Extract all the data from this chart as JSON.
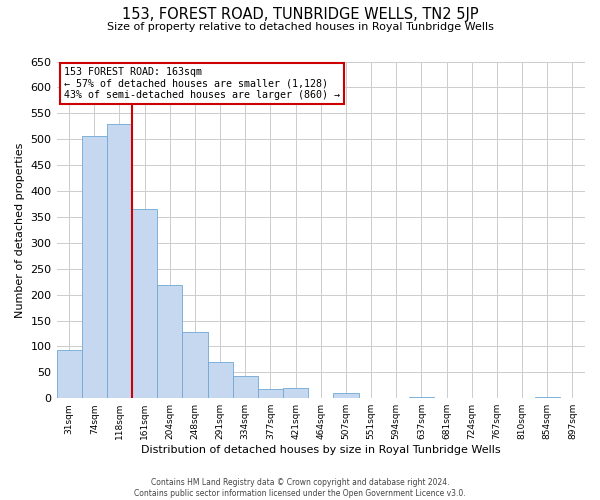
{
  "title": "153, FOREST ROAD, TUNBRIDGE WELLS, TN2 5JP",
  "subtitle": "Size of property relative to detached houses in Royal Tunbridge Wells",
  "xlabel": "Distribution of detached houses by size in Royal Tunbridge Wells",
  "ylabel": "Number of detached properties",
  "footnote1": "Contains HM Land Registry data © Crown copyright and database right 2024.",
  "footnote2": "Contains public sector information licensed under the Open Government Licence v3.0.",
  "bar_labels": [
    "31sqm",
    "74sqm",
    "118sqm",
    "161sqm",
    "204sqm",
    "248sqm",
    "291sqm",
    "334sqm",
    "377sqm",
    "421sqm",
    "464sqm",
    "507sqm",
    "551sqm",
    "594sqm",
    "637sqm",
    "681sqm",
    "724sqm",
    "767sqm",
    "810sqm",
    "854sqm",
    "897sqm"
  ],
  "bar_values": [
    93,
    507,
    530,
    365,
    218,
    128,
    70,
    42,
    18,
    20,
    0,
    10,
    0,
    0,
    2,
    0,
    0,
    0,
    0,
    2,
    0
  ],
  "bar_color": "#c5d8f0",
  "bar_edge_color": "#6fa8d4",
  "ylim": [
    0,
    650
  ],
  "yticks": [
    0,
    50,
    100,
    150,
    200,
    250,
    300,
    350,
    400,
    450,
    500,
    550,
    600,
    650
  ],
  "property_line_color": "#cc0000",
  "annotation_title": "153 FOREST ROAD: 163sqm",
  "annotation_line1": "← 57% of detached houses are smaller (1,128)",
  "annotation_line2": "43% of semi-detached houses are larger (860) →",
  "annotation_box_color": "#ffffff",
  "annotation_box_edge": "#cc0000",
  "background_color": "#ffffff",
  "grid_color": "#cccccc"
}
